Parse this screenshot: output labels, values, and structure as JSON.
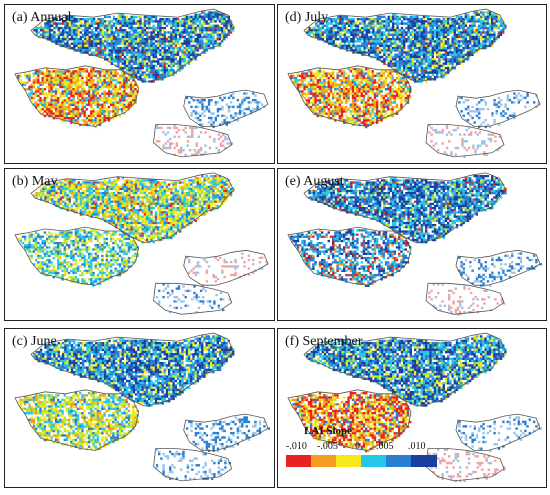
{
  "figure": {
    "panels": [
      {
        "id": "annual",
        "label": "(a) Annual",
        "pattern": "annual"
      },
      {
        "id": "may",
        "label": "(b) May",
        "pattern": "may"
      },
      {
        "id": "june",
        "label": "(c) June",
        "pattern": "june"
      },
      {
        "id": "july",
        "label": "(d) July",
        "pattern": "july"
      },
      {
        "id": "august",
        "label": "(e) August",
        "pattern": "august"
      },
      {
        "id": "september",
        "label": "(f) September",
        "pattern": "september"
      }
    ],
    "legend": {
      "title": "LAI Slope",
      "tick_labels": [
        "-.010",
        "-.005",
        "0",
        ".005",
        ".010"
      ],
      "colors": [
        "#e8231f",
        "#f39c1e",
        "#f7e81a",
        "#26c8e8",
        "#2a7fd1",
        "#1a3f9e"
      ]
    },
    "colors": {
      "outline": "#555555",
      "frame": "#222222",
      "background": "#ffffff"
    }
  }
}
